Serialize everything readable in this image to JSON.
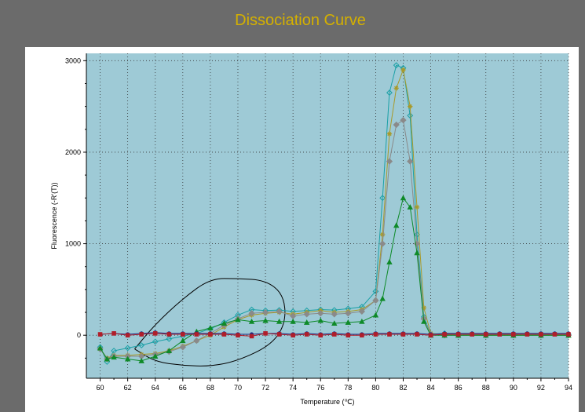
{
  "window": {
    "title": "Dissociation Curve"
  },
  "chart_data": {
    "type": "line",
    "title": "Dissociation Curve",
    "xlabel": "Temperature (℃)",
    "ylabel": "Fluorescence (-R'(T))",
    "xlim": [
      59,
      94
    ],
    "ylim": [
      -470,
      3080
    ],
    "xticks": [
      60,
      62,
      64,
      66,
      68,
      70,
      72,
      74,
      76,
      78,
      80,
      82,
      84,
      86,
      88,
      90,
      92,
      94
    ],
    "yticks": [
      0,
      1000,
      2000,
      3000
    ],
    "grid": true,
    "background_color": "#9ecad6",
    "series": [
      {
        "color": "#1aa0a6",
        "marker": "diamond-open",
        "x": [
          60,
          60.5,
          61,
          62,
          63,
          64,
          65,
          66,
          67,
          68,
          69,
          70,
          71,
          72,
          73,
          74,
          75,
          76,
          77,
          78,
          79,
          80,
          80.5,
          81,
          81.5,
          82,
          82.5,
          83,
          83.5,
          84,
          85,
          86,
          88,
          90,
          92,
          94
        ],
        "y": [
          -130,
          -290,
          -170,
          -140,
          -110,
          -70,
          -40,
          -10,
          20,
          70,
          140,
          220,
          280,
          270,
          275,
          260,
          270,
          280,
          275,
          290,
          310,
          480,
          1500,
          2650,
          2950,
          2920,
          2400,
          1100,
          200,
          10,
          20,
          10,
          0,
          10,
          0,
          10
        ]
      },
      {
        "color": "#a89a2a",
        "marker": "star",
        "x": [
          60,
          60.5,
          61,
          62,
          63,
          64,
          65,
          66,
          67,
          68,
          69,
          70,
          71,
          72,
          73,
          74,
          75,
          76,
          77,
          78,
          79,
          80,
          80.5,
          81,
          81.5,
          82,
          82.5,
          83,
          83.5,
          84,
          85,
          86,
          88,
          90,
          92,
          94
        ],
        "y": [
          -150,
          -250,
          -220,
          -220,
          -210,
          -200,
          -170,
          -120,
          -60,
          0,
          90,
          170,
          220,
          240,
          250,
          230,
          250,
          270,
          250,
          260,
          280,
          380,
          1100,
          2200,
          2700,
          2900,
          2500,
          1400,
          300,
          20,
          10,
          0,
          0,
          0,
          0,
          0
        ]
      },
      {
        "color": "#8a8a8a",
        "marker": "diamond",
        "x": [
          60,
          60.5,
          61,
          62,
          63,
          64,
          65,
          66,
          67,
          68,
          69,
          70,
          71,
          72,
          73,
          74,
          75,
          76,
          77,
          78,
          79,
          80,
          80.5,
          81,
          81.5,
          82,
          82.5,
          83,
          83.5,
          84,
          85,
          86,
          88,
          90,
          92,
          94
        ],
        "y": [
          -150,
          -260,
          -230,
          -230,
          -230,
          -210,
          -180,
          -130,
          -60,
          20,
          110,
          180,
          240,
          250,
          260,
          210,
          230,
          240,
          230,
          240,
          260,
          380,
          1000,
          1900,
          2300,
          2350,
          1900,
          1000,
          180,
          10,
          0,
          0,
          0,
          0,
          0,
          0
        ]
      },
      {
        "color": "#0e8a28",
        "marker": "triangle",
        "x": [
          60,
          60.5,
          61,
          62,
          63,
          64,
          65,
          66,
          67,
          68,
          69,
          70,
          71,
          72,
          73,
          74,
          75,
          76,
          77,
          78,
          79,
          80,
          80.5,
          81,
          81.5,
          82,
          82.5,
          83,
          83.5,
          84,
          85,
          86,
          88,
          90,
          92,
          94
        ],
        "y": [
          -140,
          -260,
          -240,
          -260,
          -280,
          -230,
          -170,
          -60,
          40,
          80,
          130,
          170,
          150,
          160,
          150,
          150,
          140,
          160,
          130,
          140,
          150,
          220,
          400,
          800,
          1200,
          1500,
          1400,
          900,
          150,
          0,
          0,
          0,
          0,
          0,
          0,
          0
        ]
      },
      {
        "color": "#1c2a80",
        "marker": "circle",
        "x": [
          60,
          61,
          62,
          63,
          64,
          65,
          66,
          67,
          68,
          69,
          70,
          71,
          72,
          73,
          74,
          75,
          76,
          77,
          78,
          79,
          80,
          81,
          82,
          83,
          84,
          85,
          86,
          87,
          88,
          89,
          90,
          91,
          92,
          93,
          94
        ],
        "y": [
          10,
          20,
          10,
          20,
          30,
          20,
          20,
          20,
          20,
          20,
          10,
          10,
          20,
          20,
          10,
          20,
          10,
          20,
          10,
          10,
          20,
          20,
          20,
          20,
          10,
          20,
          20,
          20,
          20,
          20,
          20,
          20,
          20,
          20,
          20
        ]
      },
      {
        "color": "#b01e2a",
        "marker": "square",
        "x": [
          60,
          61,
          62,
          63,
          64,
          65,
          66,
          67,
          68,
          69,
          70,
          71,
          72,
          73,
          74,
          75,
          76,
          77,
          78,
          79,
          80,
          81,
          82,
          83,
          84,
          85,
          86,
          87,
          88,
          89,
          90,
          91,
          92,
          93,
          94
        ],
        "y": [
          10,
          20,
          0,
          10,
          20,
          10,
          10,
          10,
          10,
          10,
          0,
          -10,
          20,
          10,
          0,
          10,
          0,
          10,
          0,
          0,
          10,
          10,
          10,
          10,
          0,
          10,
          10,
          10,
          10,
          10,
          10,
          10,
          10,
          10,
          10
        ]
      }
    ],
    "annotations": [
      {
        "type": "freehand-circle",
        "color": "#000000",
        "x": [
          62.5,
          64,
          66,
          68,
          70,
          72,
          73.3,
          73.5,
          72.5,
          70,
          68,
          66,
          64,
          62.5
        ],
        "y": [
          -150,
          120,
          400,
          620,
          620,
          600,
          450,
          150,
          -100,
          -280,
          -340,
          -330,
          -290,
          -150
        ]
      }
    ]
  }
}
